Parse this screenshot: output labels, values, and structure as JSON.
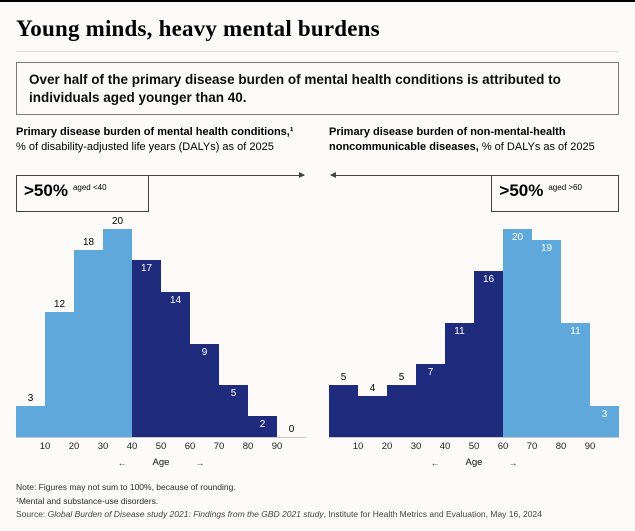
{
  "header": {
    "title": "Young minds, heavy mental burdens",
    "kicker": "Over half of the primary disease burden of mental health conditions is attributed to individuals aged younger than 40."
  },
  "colors": {
    "light": "#5FA8DC",
    "dark": "#1F2C7E"
  },
  "chart_data": [
    {
      "type": "bar",
      "title_bold": "Primary disease burden of mental health conditions,¹ ",
      "title_regular": "% of disability-adjusted life years (DALYs) as of 2025",
      "categories": [
        "0-10",
        "10-20",
        "20-30",
        "30-40",
        "40-50",
        "50-60",
        "60-70",
        "70-80",
        "80-90",
        "90-100"
      ],
      "x_tick_labels": [
        "10",
        "20",
        "30",
        "40",
        "50",
        "60",
        "70",
        "80",
        "90"
      ],
      "xlabel": "Age",
      "ylim": [
        0,
        20
      ],
      "values": [
        3,
        12,
        18,
        20,
        17,
        14,
        9,
        5,
        2,
        0
      ],
      "bar_colors": [
        "light",
        "light",
        "light",
        "light",
        "dark",
        "dark",
        "dark",
        "dark",
        "dark",
        "dark"
      ],
      "label_positions": [
        "above",
        "above",
        "above",
        "above",
        "inside",
        "inside",
        "inside",
        "inside",
        "inside",
        "above"
      ],
      "annotation": {
        "big": ">50%",
        "small": "aged <40",
        "side": "left"
      }
    },
    {
      "type": "bar",
      "title_bold": "Primary disease burden of non-mental-health noncommunicable diseases, ",
      "title_regular": "% of DALYs as of 2025",
      "categories": [
        "0-10",
        "10-20",
        "20-30",
        "30-40",
        "40-50",
        "50-60",
        "60-70",
        "70-80",
        "80-90",
        "90-100"
      ],
      "x_tick_labels": [
        "10",
        "20",
        "30",
        "40",
        "50",
        "60",
        "70",
        "80",
        "90"
      ],
      "xlabel": "Age",
      "ylim": [
        0,
        20
      ],
      "values": [
        5,
        4,
        5,
        7,
        11,
        16,
        20,
        19,
        11,
        3
      ],
      "bar_colors": [
        "dark",
        "dark",
        "dark",
        "dark",
        "dark",
        "dark",
        "light",
        "light",
        "light",
        "light"
      ],
      "label_positions": [
        "above",
        "above",
        "above",
        "inside",
        "inside",
        "inside",
        "inside",
        "inside",
        "inside",
        "inside"
      ],
      "annotation": {
        "big": ">50%",
        "small": "aged >60",
        "side": "right"
      }
    }
  ],
  "axis": {
    "left_arrow": "←",
    "right_arrow": "→"
  },
  "footer": {
    "note": "Note: Figures may not sum to 100%, because of rounding.",
    "footnote": "¹Mental and substance-use disorders.",
    "source_prefix": "Source: ",
    "source_italic": "Global Burden of Disease study 2021: Findings from the GBD 2021 study",
    "source_suffix": ", Institute for Health Metrics and Evaluation, May 16, 2024"
  }
}
